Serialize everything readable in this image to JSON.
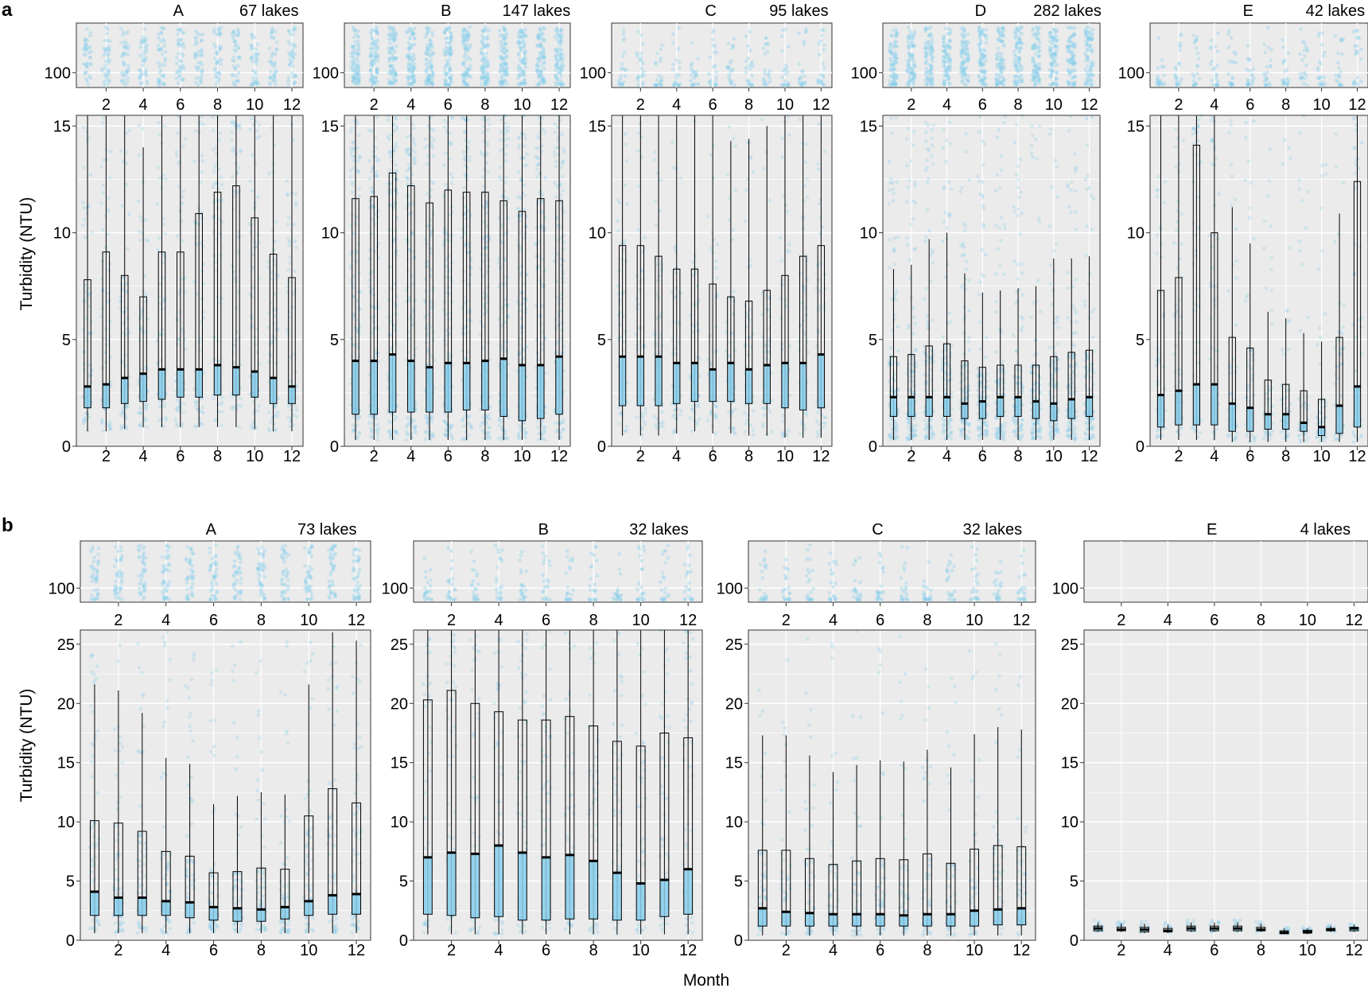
{
  "figure": {
    "row_a_label": "a",
    "row_b_label": "b",
    "y_axis_label": "Turbidity (NTU)",
    "x_axis_label": "Month"
  },
  "colors": {
    "panel_bg": "#ebebeb",
    "grid": "#ffffff",
    "points": "#87ceeb",
    "box_fill": "#87ceeb",
    "box_edge": "#000000",
    "median": "#000000"
  },
  "chart_data": [
    {
      "type": "box",
      "row": "a",
      "group": "A",
      "count_label": "67 lakes",
      "x_label": "",
      "y_label": "Turbidity (NTU)",
      "x": [
        1,
        2,
        3,
        4,
        5,
        6,
        7,
        8,
        9,
        10,
        11,
        12
      ],
      "xticks": [
        2,
        4,
        6,
        8,
        10,
        12
      ],
      "ylim": [
        0,
        15.5
      ],
      "yticks": [
        0,
        5,
        10,
        15
      ],
      "top_ytick": 100,
      "outlier_density": "medium",
      "stats": [
        {
          "low": 0.7,
          "q1": 1.8,
          "med": 2.8,
          "q3": 7.8,
          "high": 15.5
        },
        {
          "low": 0.7,
          "q1": 1.8,
          "med": 2.9,
          "q3": 9.1,
          "high": 15.5
        },
        {
          "low": 0.8,
          "q1": 2.0,
          "med": 3.2,
          "q3": 8.0,
          "high": 15.5
        },
        {
          "low": 0.9,
          "q1": 2.1,
          "med": 3.4,
          "q3": 7.0,
          "high": 14.0
        },
        {
          "low": 0.9,
          "q1": 2.2,
          "med": 3.6,
          "q3": 9.1,
          "high": 15.5
        },
        {
          "low": 0.9,
          "q1": 2.3,
          "med": 3.6,
          "q3": 9.1,
          "high": 15.5
        },
        {
          "low": 0.9,
          "q1": 2.3,
          "med": 3.6,
          "q3": 10.9,
          "high": 15.5
        },
        {
          "low": 0.9,
          "q1": 2.4,
          "med": 3.8,
          "q3": 11.9,
          "high": 15.5
        },
        {
          "low": 0.9,
          "q1": 2.4,
          "med": 3.7,
          "q3": 12.2,
          "high": 15.5
        },
        {
          "low": 0.8,
          "q1": 2.3,
          "med": 3.5,
          "q3": 10.7,
          "high": 15.5
        },
        {
          "low": 0.7,
          "q1": 2.0,
          "med": 3.2,
          "q3": 9.0,
          "high": 15.5
        },
        {
          "low": 0.7,
          "q1": 2.0,
          "med": 2.8,
          "q3": 7.9,
          "high": 15.5
        }
      ]
    },
    {
      "type": "box",
      "row": "a",
      "group": "B",
      "count_label": "147 lakes",
      "x_label": "",
      "y_label": "",
      "x": [
        1,
        2,
        3,
        4,
        5,
        6,
        7,
        8,
        9,
        10,
        11,
        12
      ],
      "xticks": [
        2,
        4,
        6,
        8,
        10,
        12
      ],
      "ylim": [
        0,
        15.5
      ],
      "yticks": [
        0,
        5,
        10,
        15
      ],
      "top_ytick": 100,
      "outlier_density": "high",
      "stats": [
        {
          "low": 0.3,
          "q1": 1.5,
          "med": 4.0,
          "q3": 11.6,
          "high": 15.5
        },
        {
          "low": 0.3,
          "q1": 1.5,
          "med": 4.0,
          "q3": 11.7,
          "high": 15.5
        },
        {
          "low": 0.3,
          "q1": 1.6,
          "med": 4.3,
          "q3": 12.8,
          "high": 15.5
        },
        {
          "low": 0.3,
          "q1": 1.6,
          "med": 4.0,
          "q3": 12.2,
          "high": 15.5
        },
        {
          "low": 0.3,
          "q1": 1.6,
          "med": 3.7,
          "q3": 11.4,
          "high": 15.5
        },
        {
          "low": 0.3,
          "q1": 1.6,
          "med": 3.9,
          "q3": 12.0,
          "high": 15.5
        },
        {
          "low": 0.3,
          "q1": 1.7,
          "med": 3.9,
          "q3": 11.9,
          "high": 15.5
        },
        {
          "low": 0.3,
          "q1": 1.7,
          "med": 4.0,
          "q3": 11.9,
          "high": 15.5
        },
        {
          "low": 0.3,
          "q1": 1.4,
          "med": 4.1,
          "q3": 11.5,
          "high": 15.5
        },
        {
          "low": 0.3,
          "q1": 1.2,
          "med": 3.8,
          "q3": 11.0,
          "high": 15.5
        },
        {
          "low": 0.3,
          "q1": 1.3,
          "med": 3.8,
          "q3": 11.6,
          "high": 15.5
        },
        {
          "low": 0.3,
          "q1": 1.5,
          "med": 4.2,
          "q3": 11.5,
          "high": 15.5
        }
      ]
    },
    {
      "type": "box",
      "row": "a",
      "group": "C",
      "count_label": "95 lakes",
      "x_label": "",
      "y_label": "",
      "x": [
        1,
        2,
        3,
        4,
        5,
        6,
        7,
        8,
        9,
        10,
        11,
        12
      ],
      "xticks": [
        2,
        4,
        6,
        8,
        10,
        12
      ],
      "ylim": [
        0,
        15.5
      ],
      "yticks": [
        0,
        5,
        10,
        15
      ],
      "top_ytick": 100,
      "outlier_density": "low",
      "stats": [
        {
          "low": 0.5,
          "q1": 1.9,
          "med": 4.2,
          "q3": 9.4,
          "high": 15.5
        },
        {
          "low": 0.5,
          "q1": 1.9,
          "med": 4.2,
          "q3": 9.4,
          "high": 15.5
        },
        {
          "low": 0.5,
          "q1": 1.9,
          "med": 4.2,
          "q3": 8.9,
          "high": 15.5
        },
        {
          "low": 0.6,
          "q1": 2.0,
          "med": 3.9,
          "q3": 8.3,
          "high": 15.5
        },
        {
          "low": 0.7,
          "q1": 2.1,
          "med": 3.9,
          "q3": 8.3,
          "high": 15.5
        },
        {
          "low": 0.6,
          "q1": 2.1,
          "med": 3.6,
          "q3": 7.6,
          "high": 15.5
        },
        {
          "low": 0.6,
          "q1": 2.1,
          "med": 3.9,
          "q3": 7.0,
          "high": 14.3
        },
        {
          "low": 0.5,
          "q1": 2.0,
          "med": 3.6,
          "q3": 6.8,
          "high": 14.4
        },
        {
          "low": 0.5,
          "q1": 2.0,
          "med": 3.8,
          "q3": 7.3,
          "high": 15.0
        },
        {
          "low": 0.4,
          "q1": 1.8,
          "med": 3.9,
          "q3": 8.0,
          "high": 15.5
        },
        {
          "low": 0.4,
          "q1": 1.7,
          "med": 3.9,
          "q3": 8.9,
          "high": 15.5
        },
        {
          "low": 0.4,
          "q1": 1.8,
          "med": 4.3,
          "q3": 9.4,
          "high": 15.5
        }
      ]
    },
    {
      "type": "box",
      "row": "a",
      "group": "D",
      "count_label": "282 lakes",
      "x_label": "",
      "y_label": "",
      "x": [
        1,
        2,
        3,
        4,
        5,
        6,
        7,
        8,
        9,
        10,
        11,
        12
      ],
      "xticks": [
        2,
        4,
        6,
        8,
        10,
        12
      ],
      "ylim": [
        0,
        15.5
      ],
      "yticks": [
        0,
        5,
        10,
        15
      ],
      "top_ytick": 100,
      "outlier_density": "high",
      "stats": [
        {
          "low": 0.3,
          "q1": 1.4,
          "med": 2.3,
          "q3": 4.2,
          "high": 8.3
        },
        {
          "low": 0.3,
          "q1": 1.4,
          "med": 2.3,
          "q3": 4.3,
          "high": 8.5
        },
        {
          "low": 0.3,
          "q1": 1.4,
          "med": 2.3,
          "q3": 4.7,
          "high": 9.7
        },
        {
          "low": 0.3,
          "q1": 1.4,
          "med": 2.3,
          "q3": 4.8,
          "high": 10.0
        },
        {
          "low": 0.3,
          "q1": 1.3,
          "med": 2.0,
          "q3": 4.0,
          "high": 8.1
        },
        {
          "low": 0.3,
          "q1": 1.3,
          "med": 2.1,
          "q3": 3.7,
          "high": 7.2
        },
        {
          "low": 0.3,
          "q1": 1.4,
          "med": 2.3,
          "q3": 3.8,
          "high": 7.3
        },
        {
          "low": 0.3,
          "q1": 1.4,
          "med": 2.3,
          "q3": 3.8,
          "high": 7.4
        },
        {
          "low": 0.3,
          "q1": 1.3,
          "med": 2.1,
          "q3": 3.8,
          "high": 7.5
        },
        {
          "low": 0.3,
          "q1": 1.2,
          "med": 2.0,
          "q3": 4.2,
          "high": 8.8
        },
        {
          "low": 0.3,
          "q1": 1.3,
          "med": 2.2,
          "q3": 4.4,
          "high": 8.8
        },
        {
          "low": 0.3,
          "q1": 1.4,
          "med": 2.3,
          "q3": 4.5,
          "high": 8.9
        }
      ]
    },
    {
      "type": "box",
      "row": "a",
      "group": "E",
      "count_label": "42 lakes",
      "x_label": "",
      "y_label": "",
      "x": [
        1,
        2,
        3,
        4,
        5,
        6,
        7,
        8,
        9,
        10,
        11,
        12
      ],
      "xticks": [
        2,
        4,
        6,
        8,
        10,
        12
      ],
      "ylim": [
        0,
        15.5
      ],
      "yticks": [
        0,
        5,
        10,
        15
      ],
      "top_ytick": 100,
      "outlier_density": "low",
      "stats": [
        {
          "low": 0.3,
          "q1": 0.9,
          "med": 2.4,
          "q3": 7.3,
          "high": 15.5
        },
        {
          "low": 0.3,
          "q1": 1.0,
          "med": 2.6,
          "q3": 7.9,
          "high": 15.5
        },
        {
          "low": 0.3,
          "q1": 1.0,
          "med": 2.9,
          "q3": 14.1,
          "high": 15.5
        },
        {
          "low": 0.3,
          "q1": 1.0,
          "med": 2.9,
          "q3": 10.0,
          "high": 15.5
        },
        {
          "low": 0.2,
          "q1": 0.7,
          "med": 2.0,
          "q3": 5.1,
          "high": 11.2
        },
        {
          "low": 0.2,
          "q1": 0.7,
          "med": 1.8,
          "q3": 4.6,
          "high": 9.5
        },
        {
          "low": 0.2,
          "q1": 0.8,
          "med": 1.5,
          "q3": 3.1,
          "high": 6.3
        },
        {
          "low": 0.2,
          "q1": 0.8,
          "med": 1.5,
          "q3": 2.9,
          "high": 6.0
        },
        {
          "low": 0.2,
          "q1": 0.7,
          "med": 1.1,
          "q3": 2.6,
          "high": 5.3
        },
        {
          "low": 0.2,
          "q1": 0.5,
          "med": 0.9,
          "q3": 2.2,
          "high": 4.9
        },
        {
          "low": 0.2,
          "q1": 0.6,
          "med": 1.9,
          "q3": 5.1,
          "high": 10.9
        },
        {
          "low": 0.2,
          "q1": 0.9,
          "med": 2.8,
          "q3": 12.4,
          "high": 15.5
        }
      ]
    },
    {
      "type": "box",
      "row": "b",
      "group": "A",
      "count_label": "73 lakes",
      "x_label": "",
      "y_label": "Turbidity (NTU)",
      "x": [
        1,
        2,
        3,
        4,
        5,
        6,
        7,
        8,
        9,
        10,
        11,
        12
      ],
      "xticks": [
        2,
        4,
        6,
        8,
        10,
        12
      ],
      "ylim": [
        0,
        26.2
      ],
      "yticks": [
        0,
        5,
        10,
        15,
        20,
        25
      ],
      "top_ytick": 100,
      "outlier_density": "medium",
      "stats": [
        {
          "low": 0.6,
          "q1": 2.1,
          "med": 4.1,
          "q3": 10.1,
          "high": 21.6
        },
        {
          "low": 0.6,
          "q1": 2.1,
          "med": 3.6,
          "q3": 9.9,
          "high": 21.1
        },
        {
          "low": 0.6,
          "q1": 2.1,
          "med": 3.6,
          "q3": 9.2,
          "high": 19.2
        },
        {
          "low": 0.6,
          "q1": 2.1,
          "med": 3.3,
          "q3": 7.5,
          "high": 15.4
        },
        {
          "low": 0.6,
          "q1": 1.9,
          "med": 3.2,
          "q3": 7.1,
          "high": 14.9
        },
        {
          "low": 0.6,
          "q1": 1.7,
          "med": 2.8,
          "q3": 5.7,
          "high": 11.5
        },
        {
          "low": 0.6,
          "q1": 1.6,
          "med": 2.7,
          "q3": 5.8,
          "high": 12.2
        },
        {
          "low": 0.6,
          "q1": 1.6,
          "med": 2.6,
          "q3": 6.1,
          "high": 12.5
        },
        {
          "low": 0.6,
          "q1": 1.8,
          "med": 2.8,
          "q3": 6.0,
          "high": 12.3
        },
        {
          "low": 0.6,
          "q1": 2.1,
          "med": 3.3,
          "q3": 10.5,
          "high": 21.6
        },
        {
          "low": 0.6,
          "q1": 2.2,
          "med": 3.8,
          "q3": 12.8,
          "high": 26.0
        },
        {
          "low": 0.6,
          "q1": 2.2,
          "med": 3.9,
          "q3": 11.6,
          "high": 25.3
        }
      ]
    },
    {
      "type": "box",
      "row": "b",
      "group": "B",
      "count_label": "32 lakes",
      "x_label": "",
      "y_label": "",
      "x": [
        1,
        2,
        3,
        4,
        5,
        6,
        7,
        8,
        9,
        10,
        11,
        12
      ],
      "xticks": [
        2,
        4,
        6,
        8,
        10,
        12
      ],
      "ylim": [
        0,
        26.2
      ],
      "yticks": [
        0,
        5,
        10,
        15,
        20,
        25
      ],
      "top_ytick": 100,
      "outlier_density": "low",
      "stats": [
        {
          "low": 0.5,
          "q1": 2.2,
          "med": 7.0,
          "q3": 20.3,
          "high": 26.2
        },
        {
          "low": 0.5,
          "q1": 2.1,
          "med": 7.4,
          "q3": 21.1,
          "high": 26.2
        },
        {
          "low": 0.5,
          "q1": 1.9,
          "med": 7.3,
          "q3": 20.0,
          "high": 26.2
        },
        {
          "low": 0.5,
          "q1": 2.0,
          "med": 8.0,
          "q3": 19.3,
          "high": 26.2
        },
        {
          "low": 0.5,
          "q1": 1.7,
          "med": 7.4,
          "q3": 18.6,
          "high": 26.2
        },
        {
          "low": 0.5,
          "q1": 1.7,
          "med": 7.0,
          "q3": 18.6,
          "high": 26.2
        },
        {
          "low": 0.5,
          "q1": 1.8,
          "med": 7.2,
          "q3": 18.9,
          "high": 26.2
        },
        {
          "low": 0.5,
          "q1": 1.8,
          "med": 6.7,
          "q3": 18.1,
          "high": 26.2
        },
        {
          "low": 0.5,
          "q1": 1.7,
          "med": 5.7,
          "q3": 16.8,
          "high": 26.2
        },
        {
          "low": 0.5,
          "q1": 1.7,
          "med": 4.8,
          "q3": 16.4,
          "high": 26.2
        },
        {
          "low": 0.5,
          "q1": 2.0,
          "med": 5.1,
          "q3": 17.5,
          "high": 26.2
        },
        {
          "low": 0.5,
          "q1": 2.2,
          "med": 6.0,
          "q3": 17.1,
          "high": 26.2
        }
      ]
    },
    {
      "type": "box",
      "row": "b",
      "group": "C",
      "count_label": "32 lakes",
      "x_label": "Month",
      "y_label": "",
      "x": [
        1,
        2,
        3,
        4,
        5,
        6,
        7,
        8,
        9,
        10,
        11,
        12
      ],
      "xticks": [
        2,
        4,
        6,
        8,
        10,
        12
      ],
      "ylim": [
        0,
        26.2
      ],
      "yticks": [
        0,
        5,
        10,
        15,
        20,
        25
      ],
      "top_ytick": 100,
      "outlier_density": "low",
      "stats": [
        {
          "low": 0.4,
          "q1": 1.2,
          "med": 2.7,
          "q3": 7.6,
          "high": 17.3
        },
        {
          "low": 0.4,
          "q1": 1.2,
          "med": 2.4,
          "q3": 7.6,
          "high": 17.3
        },
        {
          "low": 0.4,
          "q1": 1.2,
          "med": 2.3,
          "q3": 6.9,
          "high": 15.6
        },
        {
          "low": 0.4,
          "q1": 1.2,
          "med": 2.2,
          "q3": 6.4,
          "high": 14.2
        },
        {
          "low": 0.4,
          "q1": 1.2,
          "med": 2.2,
          "q3": 6.7,
          "high": 14.8
        },
        {
          "low": 0.4,
          "q1": 1.2,
          "med": 2.2,
          "q3": 6.9,
          "high": 15.2
        },
        {
          "low": 0.4,
          "q1": 1.2,
          "med": 2.1,
          "q3": 6.8,
          "high": 15.1
        },
        {
          "low": 0.4,
          "q1": 1.2,
          "med": 2.2,
          "q3": 7.3,
          "high": 16.1
        },
        {
          "low": 0.4,
          "q1": 1.2,
          "med": 2.2,
          "q3": 6.5,
          "high": 14.6
        },
        {
          "low": 0.4,
          "q1": 1.2,
          "med": 2.5,
          "q3": 7.7,
          "high": 17.4
        },
        {
          "low": 0.4,
          "q1": 1.3,
          "med": 2.6,
          "q3": 8.0,
          "high": 18.0
        },
        {
          "low": 0.4,
          "q1": 1.3,
          "med": 2.7,
          "q3": 7.9,
          "high": 17.8
        }
      ]
    },
    {
      "type": "box",
      "row": "b",
      "group": "E",
      "count_label": "4 lakes",
      "x_label": "",
      "y_label": "",
      "x": [
        1,
        2,
        3,
        4,
        5,
        6,
        7,
        8,
        9,
        10,
        11,
        12
      ],
      "xticks": [
        2,
        4,
        6,
        8,
        10,
        12
      ],
      "ylim": [
        0,
        26.2
      ],
      "yticks": [
        0,
        5,
        10,
        15,
        20,
        25
      ],
      "top_ytick": 100,
      "outlier_density": "none",
      "stats": [
        {
          "low": 0.7,
          "q1": 0.8,
          "med": 1.0,
          "q3": 1.2,
          "high": 1.5
        },
        {
          "low": 0.7,
          "q1": 0.8,
          "med": 0.9,
          "q3": 1.1,
          "high": 1.4
        },
        {
          "low": 0.6,
          "q1": 0.7,
          "med": 0.9,
          "q3": 1.1,
          "high": 1.4
        },
        {
          "low": 0.6,
          "q1": 0.7,
          "med": 0.8,
          "q3": 1.0,
          "high": 1.3
        },
        {
          "low": 0.7,
          "q1": 0.8,
          "med": 1.0,
          "q3": 1.2,
          "high": 1.5
        },
        {
          "low": 0.7,
          "q1": 0.8,
          "med": 1.0,
          "q3": 1.2,
          "high": 1.5
        },
        {
          "low": 0.7,
          "q1": 0.8,
          "med": 1.0,
          "q3": 1.2,
          "high": 1.5
        },
        {
          "low": 0.7,
          "q1": 0.8,
          "med": 0.9,
          "q3": 1.1,
          "high": 1.4
        },
        {
          "low": 0.5,
          "q1": 0.55,
          "med": 0.65,
          "q3": 0.8,
          "high": 1.0
        },
        {
          "low": 0.5,
          "q1": 0.6,
          "med": 0.7,
          "q3": 0.85,
          "high": 1.0
        },
        {
          "low": 0.7,
          "q1": 0.8,
          "med": 0.9,
          "q3": 1.0,
          "high": 1.2
        },
        {
          "low": 0.7,
          "q1": 0.8,
          "med": 1.0,
          "q3": 1.1,
          "high": 1.3
        }
      ]
    }
  ]
}
